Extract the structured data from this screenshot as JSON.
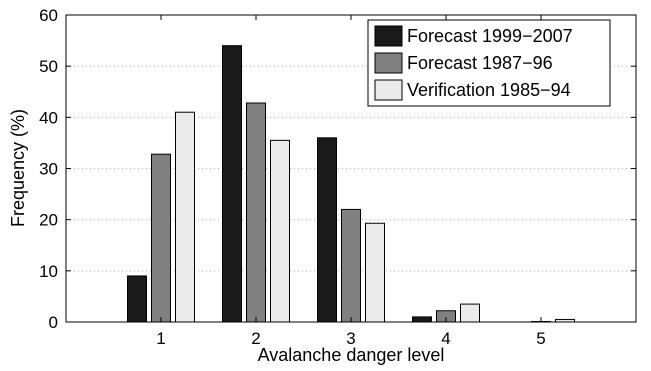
{
  "chart_data": {
    "type": "bar",
    "xlabel": "Avalanche danger level",
    "ylabel": "Frequency (%)",
    "ylim": [
      0,
      60
    ],
    "xlim": [
      0,
      6
    ],
    "yticks": [
      0,
      10,
      20,
      30,
      40,
      50,
      60
    ],
    "categories": [
      "1",
      "2",
      "3",
      "4",
      "5"
    ],
    "grid": "horizontal dotted",
    "legend_position": "top-right",
    "series": [
      {
        "name": "Forecast 1999−2007",
        "color": "#1a1a1a",
        "values": [
          9,
          54,
          36,
          1,
          0
        ]
      },
      {
        "name": "Forecast 1987−96",
        "color": "#808080",
        "values": [
          32.8,
          42.8,
          22,
          2.2,
          0.1
        ]
      },
      {
        "name": "Verification 1985−94",
        "color": "#ebebeb",
        "values": [
          41,
          35.5,
          19.3,
          3.5,
          0.5
        ]
      }
    ]
  }
}
